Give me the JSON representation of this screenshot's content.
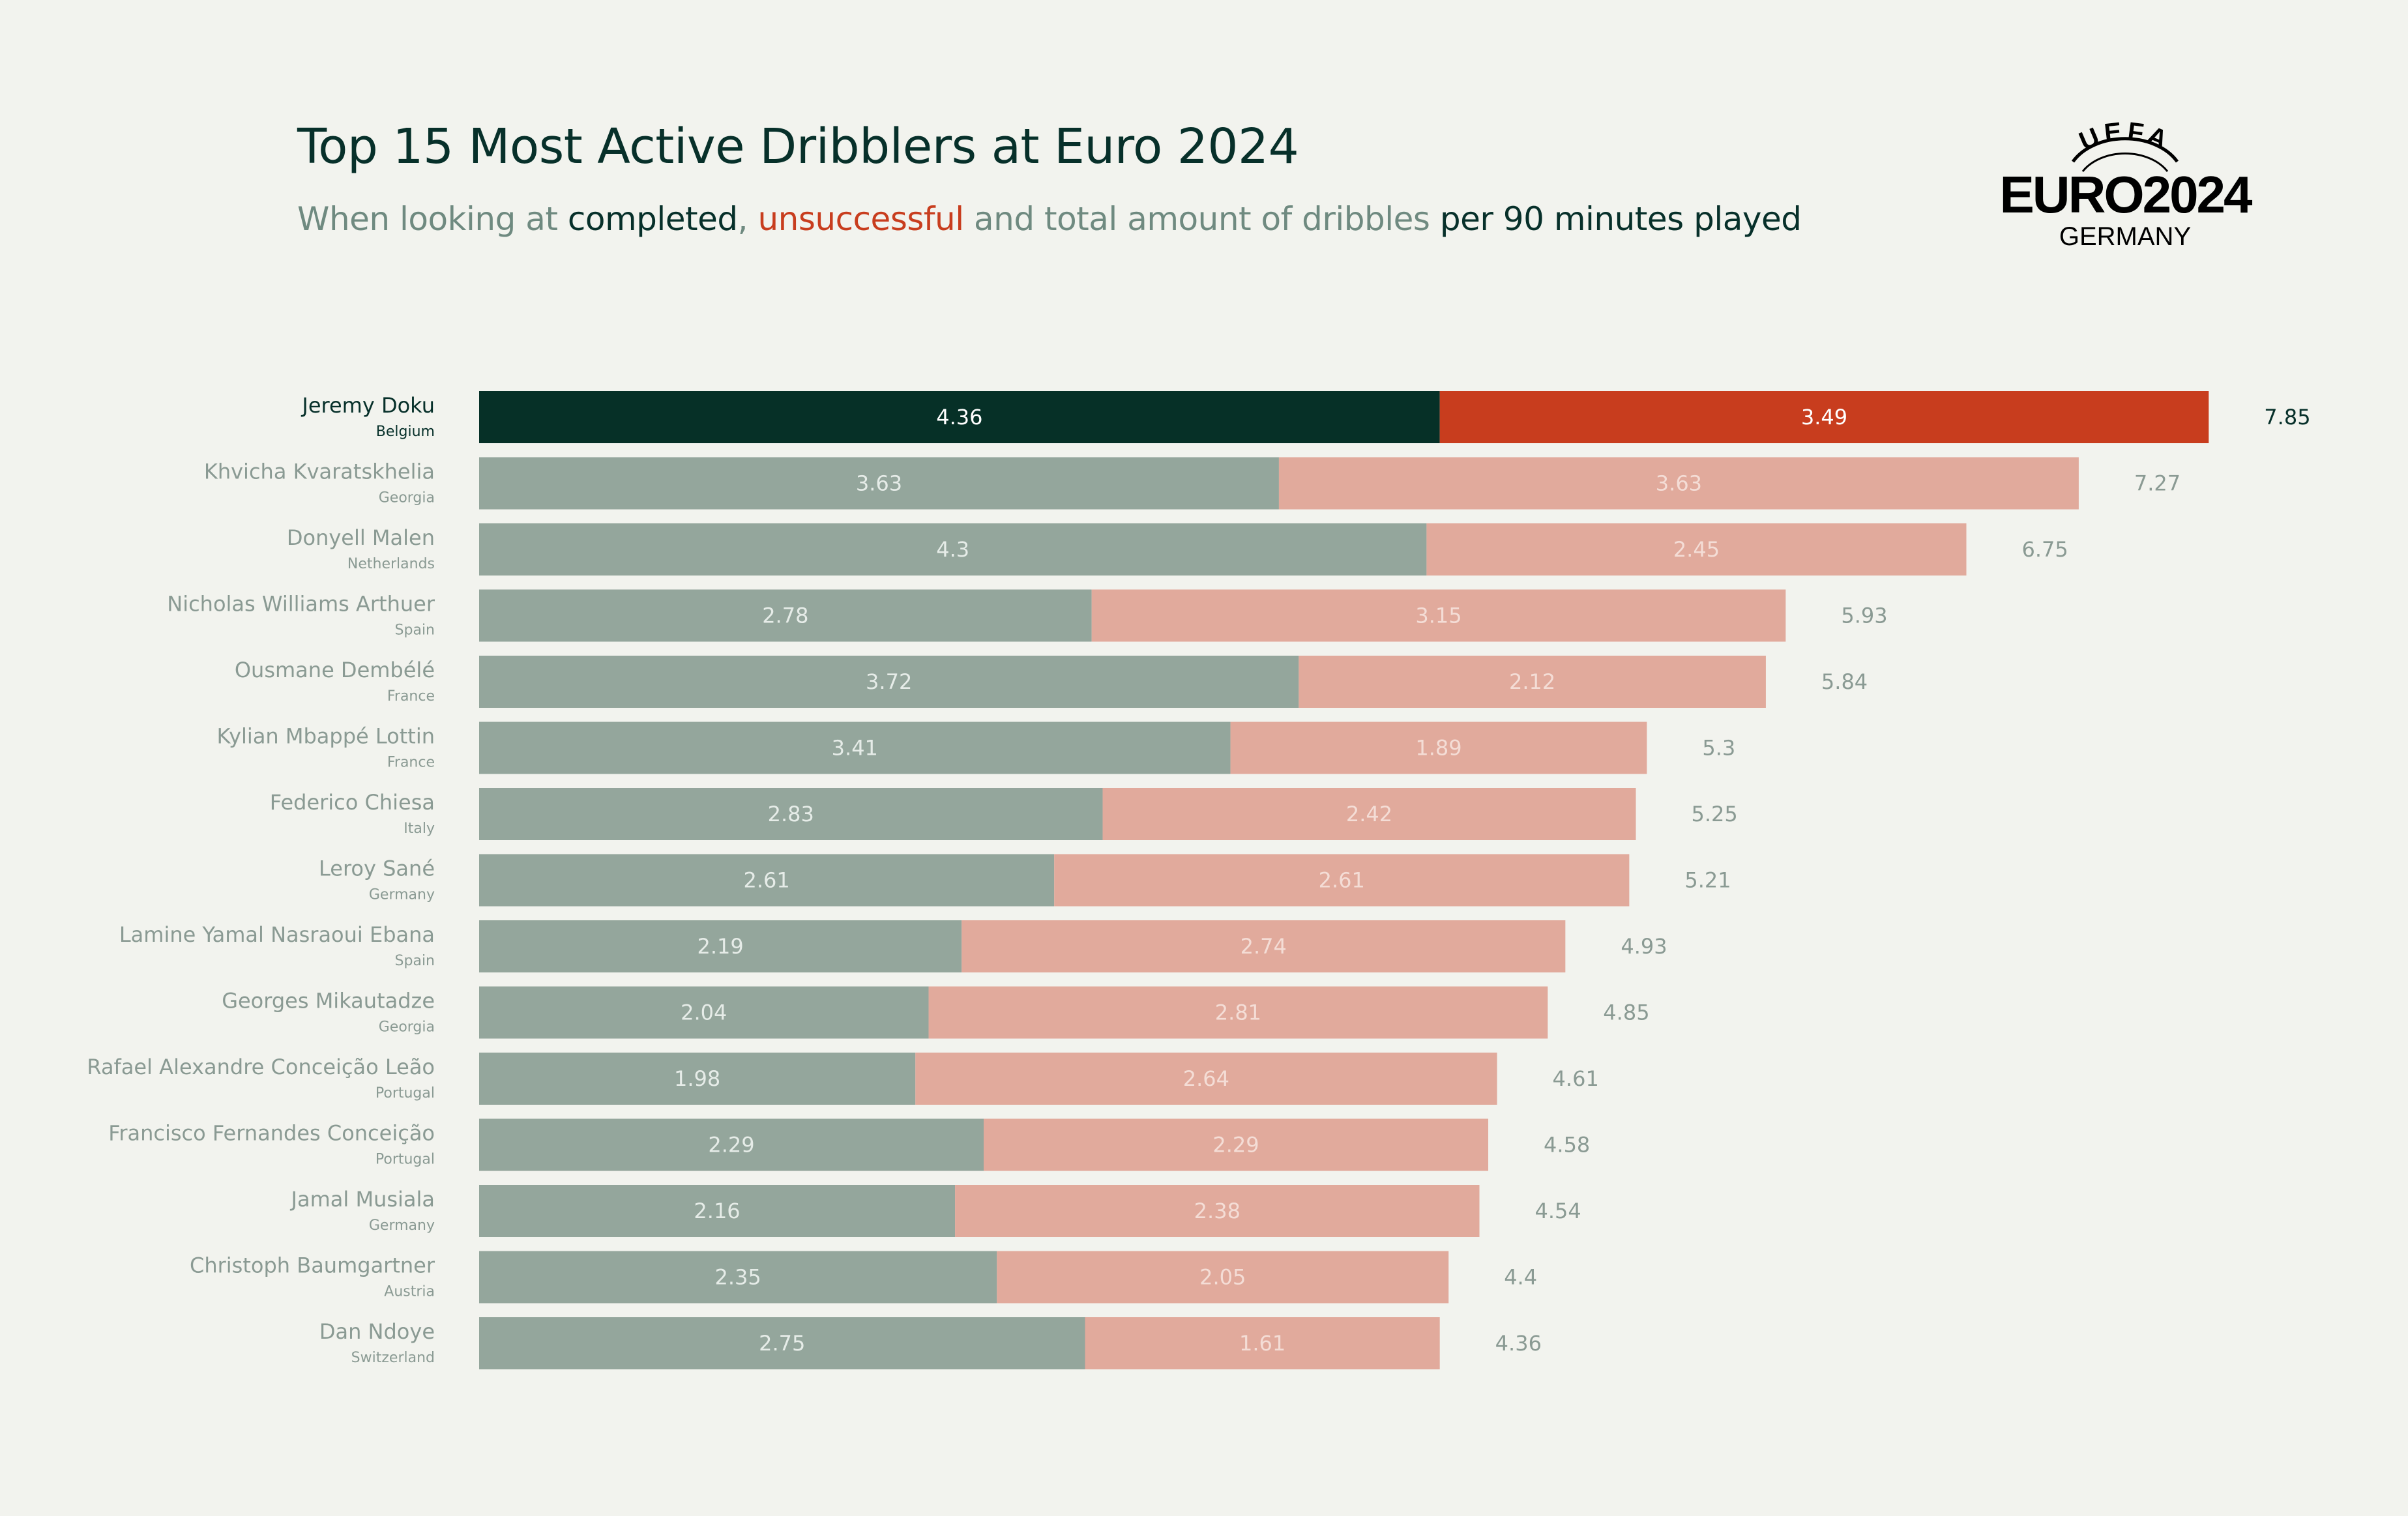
{
  "header": {
    "title": "Top 15 Most Active Dribblers at Euro 2024",
    "subtitle": {
      "part1": "When looking at ",
      "completed": "completed",
      "comma": ", ",
      "unsuccessful": "unsuccessful",
      "part2": " and total amount of dribbles ",
      "part3": "per 90 minutes played"
    }
  },
  "logo": {
    "top_text": "UEFA",
    "main_text": "EURO2024",
    "sub_text": "GERMANY"
  },
  "colors": {
    "background": "#f2f3ee",
    "highlight_completed": "#063027",
    "highlight_unsuccessful": "#c83d1e",
    "completed": "#94a69c",
    "unsuccessful": "#e1aa9c",
    "name_highlight": "#07302a",
    "name_muted": "#8a9a93"
  },
  "chart_data": {
    "type": "bar",
    "orientation": "horizontal",
    "stacked": true,
    "categories": [
      "Jeremy Doku",
      "Khvicha Kvaratskhelia",
      "Donyell Malen",
      "Nicholas Williams Arthuer",
      "Ousmane Dembélé",
      "Kylian Mbappé Lottin",
      "Federico Chiesa",
      "Leroy Sané",
      "Lamine Yamal Nasraoui Ebana",
      "Georges Mikautadze",
      "Rafael Alexandre Conceição Leão",
      "Francisco Fernandes Conceição",
      "Jamal Musiala",
      "Christoph Baumgartner",
      "Dan Ndoye"
    ],
    "countries": [
      "Belgium",
      "Georgia",
      "Netherlands",
      "Spain",
      "France",
      "France",
      "Italy",
      "Germany",
      "Spain",
      "Georgia",
      "Portugal",
      "Portugal",
      "Germany",
      "Austria",
      "Switzerland"
    ],
    "series": [
      {
        "values": [
          4.36,
          3.63,
          4.3,
          2.78,
          3.72,
          3.41,
          2.83,
          2.61,
          2.19,
          2.04,
          1.98,
          2.29,
          2.16,
          2.35,
          2.75
        ]
      },
      {
        "values": [
          3.49,
          3.63,
          2.45,
          3.15,
          2.12,
          1.89,
          2.42,
          2.61,
          2.74,
          2.81,
          2.64,
          2.29,
          2.38,
          2.05,
          1.61
        ]
      }
    ],
    "totals": [
      "7.85",
      "7.27",
      "6.75",
      "5.93",
      "5.84",
      "5.3",
      "5.25",
      "5.21",
      "4.93",
      "4.85",
      "4.61",
      "4.58",
      "4.54",
      "4.4",
      "4.36"
    ],
    "xlim": [
      0,
      7.85
    ],
    "grid": false,
    "highlight_index": 0
  }
}
